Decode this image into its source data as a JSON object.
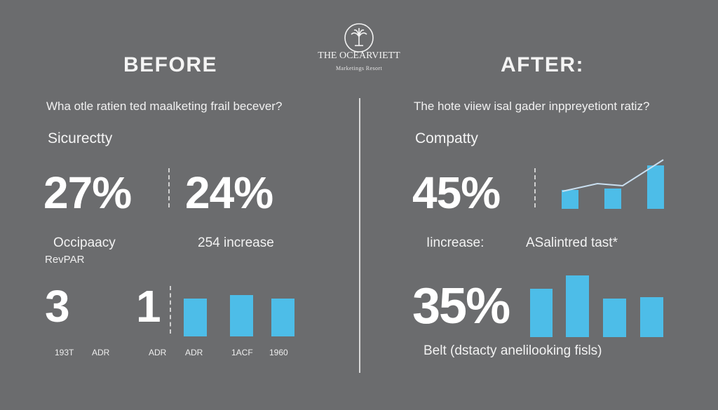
{
  "brand": {
    "name": "THE OCEARVIETT",
    "tagline": "Marketings Resort",
    "logo_icon": "lotus-fountain-icon"
  },
  "before": {
    "heading": "BEFORE",
    "question": "Wha otle ratien ted maalketing frail becever?",
    "subheading": "Sicurectty",
    "stat1": "27%",
    "stat2": "24%",
    "label1": "Occipaacy",
    "label2": "RevPAR",
    "increase_note": "254 increase",
    "num1": "3",
    "num2": "1",
    "axis_labels": [
      "193T",
      "ADR",
      "ADR",
      "ADR",
      "1ACF",
      "1960"
    ]
  },
  "after": {
    "heading": "AFTER:",
    "question": "The hote viiew isal gader inppreyetiont ratiz?",
    "subheading": "Compatty",
    "stat1": "45%",
    "label1": "Iincrease:",
    "label2": "ASalintred tast*",
    "stat2": "35%",
    "footer": "Belt (dstacty anelilooking fisls)"
  },
  "colors": {
    "background": "#6b6c6e",
    "bar": "#4dbde8",
    "text": "#ffffff"
  },
  "chart_data": [
    {
      "type": "bar",
      "values": [
        0.66,
        0.72,
        0.66
      ]
    },
    {
      "type": "bar",
      "values": [
        0.38,
        0.42,
        0.88
      ]
    },
    {
      "type": "bar",
      "values": [
        0.78,
        1.0,
        0.63,
        0.65
      ]
    }
  ]
}
